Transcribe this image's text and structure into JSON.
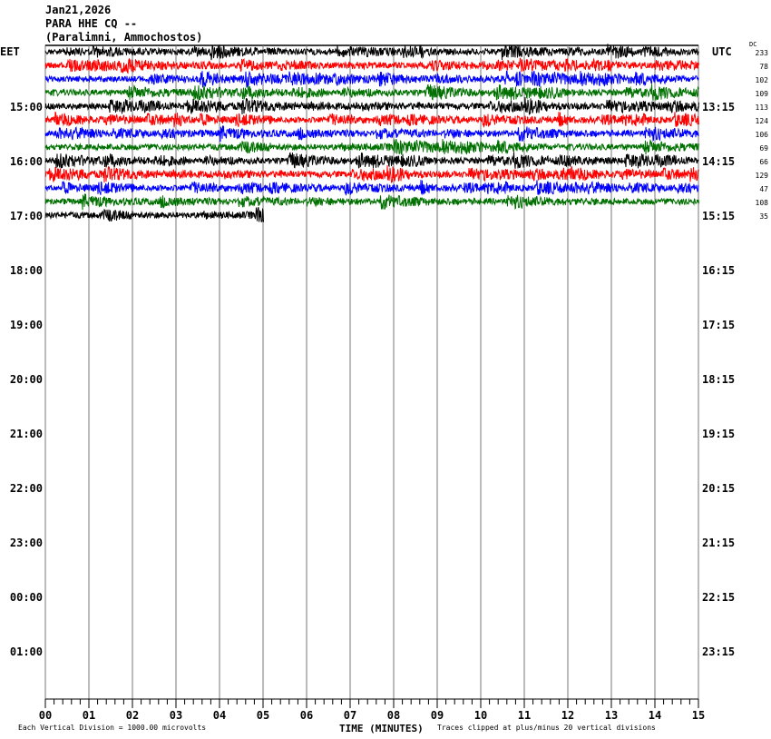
{
  "header": {
    "date": "Jan21,2026",
    "station": "PARA HHE CQ --",
    "location": "(Paralimni, Ammochostos)"
  },
  "chart_data": {
    "type": "line",
    "title": "PARA HHE CQ --",
    "left_timezone": "EET",
    "right_timezone": "UTC",
    "dc_label": "DC",
    "xlabel": "TIME (MINUTES)",
    "xlim": [
      0,
      15
    ],
    "x_ticks": [
      "00",
      "01",
      "02",
      "03",
      "04",
      "05",
      "06",
      "07",
      "08",
      "09",
      "10",
      "11",
      "12",
      "13",
      "14",
      "15"
    ],
    "rows_per_hour": 4,
    "total_rows": 48,
    "left_hour_labels": [
      {
        "row": 4,
        "label": "15:00"
      },
      {
        "row": 8,
        "label": "16:00"
      },
      {
        "row": 12,
        "label": "17:00"
      },
      {
        "row": 16,
        "label": "18:00"
      },
      {
        "row": 20,
        "label": "19:00"
      },
      {
        "row": 24,
        "label": "20:00"
      },
      {
        "row": 28,
        "label": "21:00"
      },
      {
        "row": 32,
        "label": "22:00"
      },
      {
        "row": 36,
        "label": "23:00"
      },
      {
        "row": 40,
        "label": "00:00"
      },
      {
        "row": 44,
        "label": "01:00"
      }
    ],
    "right_hour_labels": [
      {
        "row": 4,
        "label": "13:15"
      },
      {
        "row": 8,
        "label": "14:15"
      },
      {
        "row": 12,
        "label": "15:15"
      },
      {
        "row": 16,
        "label": "16:15"
      },
      {
        "row": 20,
        "label": "17:15"
      },
      {
        "row": 24,
        "label": "18:15"
      },
      {
        "row": 28,
        "label": "19:15"
      },
      {
        "row": 32,
        "label": "20:15"
      },
      {
        "row": 36,
        "label": "21:15"
      },
      {
        "row": 40,
        "label": "22:15"
      },
      {
        "row": 44,
        "label": "23:15"
      }
    ],
    "trace_colors": [
      "#000000",
      "#ff0000",
      "#0000ff",
      "#007000"
    ],
    "traces": [
      {
        "row": 0,
        "dc": "233",
        "end_minute": 15
      },
      {
        "row": 1,
        "dc": "78",
        "end_minute": 15
      },
      {
        "row": 2,
        "dc": "102",
        "end_minute": 15
      },
      {
        "row": 3,
        "dc": "109",
        "end_minute": 15
      },
      {
        "row": 4,
        "dc": "113",
        "end_minute": 15
      },
      {
        "row": 5,
        "dc": "124",
        "end_minute": 15
      },
      {
        "row": 6,
        "dc": "106",
        "end_minute": 15
      },
      {
        "row": 7,
        "dc": "69",
        "end_minute": 15
      },
      {
        "row": 8,
        "dc": "66",
        "end_minute": 15
      },
      {
        "row": 9,
        "dc": "129",
        "end_minute": 15
      },
      {
        "row": 10,
        "dc": "47",
        "end_minute": 15
      },
      {
        "row": 11,
        "dc": "108",
        "end_minute": 15
      },
      {
        "row": 12,
        "dc": "35",
        "end_minute": 5
      }
    ]
  },
  "footer": {
    "scale_note": "Each Vertical Division = 1000.00 microvolts",
    "clip_note": "Traces clipped at plus/minus 20 vertical divisions"
  }
}
